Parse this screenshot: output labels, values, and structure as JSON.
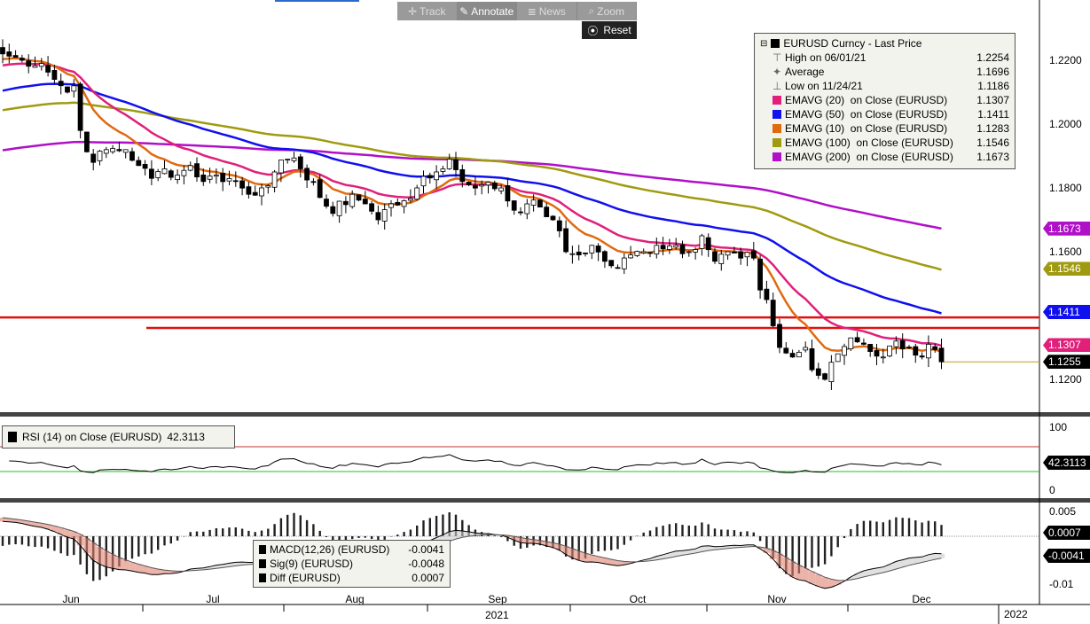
{
  "toolbar": {
    "track": "Track",
    "annotate": "Annotate",
    "news": "News",
    "zoom": "Zoom",
    "reset": "Reset"
  },
  "legend": {
    "title": "EURUSD Curncy - Last Price",
    "rows": [
      {
        "label": "High on 06/01/21",
        "value": "1.2254",
        "icon": "high-marker-icon"
      },
      {
        "label": "Average",
        "value": "1.1696",
        "icon": "average-marker-icon"
      },
      {
        "label": "Low on 11/24/21",
        "value": "1.1186",
        "icon": "low-marker-icon"
      },
      {
        "label": "EMAVG (20)  on Close (EURUSD)",
        "value": "1.1307",
        "color": "#e0207a"
      },
      {
        "label": "EMAVG (50)  on Close (EURUSD)",
        "value": "1.1411",
        "color": "#1010ee"
      },
      {
        "label": "EMAVG (10)  on Close (EURUSD)",
        "value": "1.1283",
        "color": "#e06a10"
      },
      {
        "label": "EMAVG (100)  on Close (EURUSD)",
        "value": "1.1546",
        "color": "#a09a10"
      },
      {
        "label": "EMAVG (200)  on Close (EURUSD)",
        "value": "1.1673",
        "color": "#b010c8"
      }
    ]
  },
  "rsi_legend": {
    "label": "RSI (14)  on Close (EURUSD)",
    "value": "42.3113"
  },
  "macd_legend": [
    {
      "label": "MACD(12,26) (EURUSD)",
      "value": "-0.0041"
    },
    {
      "label": "Sig(9) (EURUSD)",
      "value": "-0.0048"
    },
    {
      "label": "Diff (EURUSD)",
      "value": "0.0007"
    }
  ],
  "price_axis": [
    "1.2200",
    "1.2000",
    "1.1800",
    "1.1600",
    "1.1200"
  ],
  "price_tags": [
    {
      "value": "1.1673",
      "color": "#b010c8"
    },
    {
      "value": "1.1546",
      "color": "#a09a10"
    },
    {
      "value": "1.1411",
      "color": "#1010ee"
    },
    {
      "value": "1.1307",
      "color": "#e0207a"
    },
    {
      "value": "1.1255",
      "color": "#000000"
    }
  ],
  "rsi_axis": [
    "100",
    "0"
  ],
  "rsi_tag": "42.3113",
  "macd_axis": [
    "0.005",
    "-0.01"
  ],
  "macd_tags": [
    "0.0007",
    "-0.0041"
  ],
  "x_axis": {
    "months": [
      "Jun",
      "Jul",
      "Aug",
      "Sep",
      "Oct",
      "Nov",
      "Dec"
    ],
    "year": "2021",
    "next_year": "2022"
  },
  "chart_data": {
    "type": "candlestick",
    "title": "EURUSD Curncy - Last Price",
    "ylim": [
      1.108,
      1.232
    ],
    "close_keypoints": [
      [
        0,
        1.222
      ],
      [
        3,
        1.22
      ],
      [
        6,
        1.219
      ],
      [
        8,
        1.214
      ],
      [
        10,
        1.21
      ],
      [
        11,
        1.212
      ],
      [
        12,
        1.198
      ],
      [
        14,
        1.188
      ],
      [
        16,
        1.192
      ],
      [
        19,
        1.192
      ],
      [
        21,
        1.187
      ],
      [
        23,
        1.183
      ],
      [
        25,
        1.186
      ],
      [
        27,
        1.184
      ],
      [
        29,
        1.187
      ],
      [
        31,
        1.182
      ],
      [
        33,
        1.184
      ],
      [
        36,
        1.182
      ],
      [
        38,
        1.178
      ],
      [
        40,
        1.18
      ],
      [
        42,
        1.185
      ],
      [
        44,
        1.189
      ],
      [
        46,
        1.186
      ],
      [
        48,
        1.182
      ],
      [
        49,
        1.177
      ],
      [
        51,
        1.172
      ],
      [
        54,
        1.178
      ],
      [
        56,
        1.175
      ],
      [
        58,
        1.17
      ],
      [
        60,
        1.175
      ],
      [
        62,
        1.176
      ],
      [
        64,
        1.18
      ],
      [
        67,
        1.185
      ],
      [
        69,
        1.189
      ],
      [
        71,
        1.182
      ],
      [
        74,
        1.181
      ],
      [
        77,
        1.18
      ],
      [
        79,
        1.173
      ],
      [
        81,
        1.175
      ],
      [
        83,
        1.174
      ],
      [
        85,
        1.17
      ],
      [
        87,
        1.16
      ],
      [
        89,
        1.159
      ],
      [
        91,
        1.162
      ],
      [
        93,
        1.157
      ],
      [
        95,
        1.155
      ],
      [
        97,
        1.159
      ],
      [
        99,
        1.16
      ],
      [
        101,
        1.162
      ],
      [
        104,
        1.162
      ],
      [
        106,
        1.16
      ],
      [
        108,
        1.165
      ],
      [
        110,
        1.157
      ],
      [
        112,
        1.16
      ],
      [
        114,
        1.158
      ],
      [
        116,
        1.158
      ],
      [
        117,
        1.148
      ],
      [
        118,
        1.145
      ],
      [
        120,
        1.13
      ],
      [
        122,
        1.127
      ],
      [
        124,
        1.13
      ],
      [
        125,
        1.123
      ],
      [
        127,
        1.12
      ],
      [
        129,
        1.128
      ],
      [
        131,
        1.133
      ],
      [
        133,
        1.131
      ],
      [
        136,
        1.127
      ],
      [
        138,
        1.132
      ],
      [
        140,
        1.13
      ],
      [
        142,
        1.127
      ],
      [
        143,
        1.131
      ],
      [
        145,
        1.1255
      ]
    ],
    "ema_start": {
      "10": 1.22,
      "20": 1.218,
      "50": 1.21,
      "100": 1.204,
      "200": 1.1915
    },
    "horizontal_lines": [
      1.1394,
      1.1361
    ],
    "rsi": {
      "period": 14,
      "last": 42.3113,
      "levels": [
        70,
        30
      ],
      "ylim": [
        0,
        100
      ]
    },
    "macd": {
      "fast": 12,
      "slow": 26,
      "signal": 9,
      "macd": -0.0041,
      "signal_value": -0.0048,
      "diff": 0.0007,
      "ylim": [
        -0.0115,
        0.0065
      ]
    }
  }
}
